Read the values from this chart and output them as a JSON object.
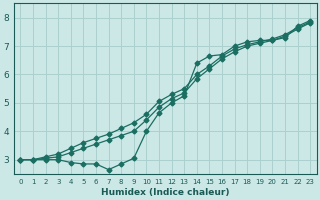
{
  "xlabel": "Humidex (Indice chaleur)",
  "ylabel": "",
  "background_color": "#cce8e6",
  "grid_color": "#aad0ce",
  "line_color": "#1a6e62",
  "xlim": [
    -0.5,
    23.5
  ],
  "ylim": [
    2.5,
    8.5
  ],
  "xticks": [
    0,
    1,
    2,
    3,
    4,
    5,
    6,
    7,
    8,
    9,
    10,
    11,
    12,
    13,
    14,
    15,
    16,
    17,
    18,
    19,
    20,
    21,
    22,
    23
  ],
  "yticks": [
    3,
    4,
    5,
    6,
    7,
    8
  ],
  "line1_x": [
    0,
    1,
    2,
    3,
    4,
    5,
    6,
    7,
    8,
    9,
    10,
    11,
    12,
    13,
    14,
    15,
    16,
    17,
    18,
    19,
    20,
    21,
    22,
    23
  ],
  "line1_y": [
    3.0,
    3.0,
    3.0,
    3.0,
    2.9,
    2.85,
    2.85,
    2.65,
    2.85,
    3.05,
    4.0,
    4.65,
    5.0,
    5.25,
    6.4,
    6.65,
    6.7,
    7.0,
    7.15,
    7.2,
    7.2,
    7.3,
    7.7,
    7.9
  ],
  "line2_x": [
    0,
    1,
    2,
    3,
    4,
    5,
    6,
    7,
    8,
    9,
    10,
    11,
    12,
    13,
    14,
    15,
    16,
    17,
    18,
    19,
    20,
    21,
    22,
    23
  ],
  "line2_y": [
    3.0,
    3.0,
    3.1,
    3.2,
    3.4,
    3.6,
    3.75,
    3.9,
    4.1,
    4.3,
    4.6,
    5.05,
    5.3,
    5.5,
    6.0,
    6.3,
    6.65,
    6.9,
    7.05,
    7.15,
    7.25,
    7.4,
    7.65,
    7.85
  ],
  "line3_x": [
    0,
    1,
    2,
    3,
    4,
    5,
    6,
    7,
    8,
    9,
    10,
    11,
    12,
    13,
    14,
    15,
    16,
    17,
    18,
    19,
    20,
    21,
    22,
    23
  ],
  "line3_y": [
    3.0,
    3.0,
    3.05,
    3.1,
    3.25,
    3.4,
    3.55,
    3.7,
    3.85,
    4.0,
    4.4,
    4.85,
    5.15,
    5.35,
    5.85,
    6.2,
    6.55,
    6.8,
    7.0,
    7.1,
    7.2,
    7.35,
    7.6,
    7.82
  ]
}
